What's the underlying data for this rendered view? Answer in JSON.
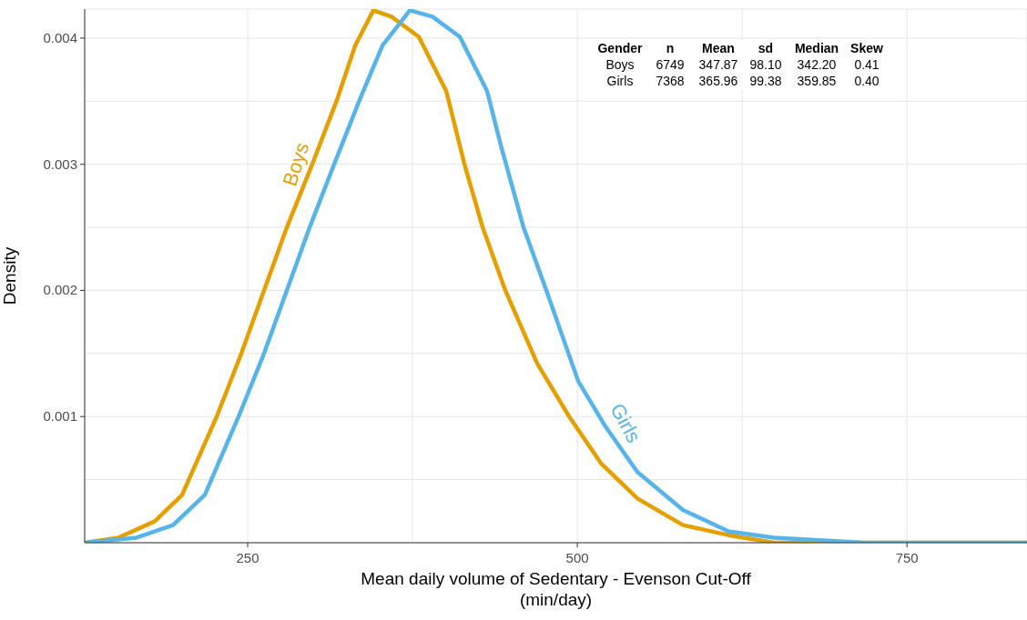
{
  "chart_data": {
    "type": "line",
    "xlabel": "Mean daily volume of Sedentary - Evenson Cut-Off\n(min/day)",
    "ylabel": "Density",
    "xlim": [
      126.4,
      841
    ],
    "ylim": [
      0,
      0.00423
    ],
    "xticks": [
      250,
      {
        "value": 375,
        "label": null
      },
      500,
      {
        "value": 625,
        "label": null
      },
      750
    ],
    "yticks": [
      {
        "value": 0.0005,
        "label": null
      },
      0.001,
      {
        "value": 0.0015,
        "label": null
      },
      0.002,
      {
        "value": 0.0025,
        "label": null
      },
      0.003,
      {
        "value": 0.0035,
        "label": null
      },
      0.004
    ],
    "grid": true,
    "marker": "none",
    "line_style": "solid",
    "annotations": [
      "Gender",
      "n",
      "Mean",
      "sd",
      "Median",
      "Skew",
      "Boys",
      "6749",
      "347.87",
      "98.10",
      "342.20",
      "0.41",
      "Girls",
      "7368",
      "365.96",
      "99.38",
      "359.85",
      "0.40"
    ],
    "series": [
      {
        "name": "Boys",
        "color": "#e69f00",
        "x": [
          126.4,
          151.9,
          179.6,
          200.3,
          226.5,
          245.2,
          262.4,
          279.7,
          299,
          317.7,
          331.5,
          345.3,
          359.1,
          379.8,
          400.6,
          414.4,
          428.2,
          445.4,
          469.6,
          493.8,
          517.9,
          545.6,
          580.1,
          614.7,
          649.2,
          683.7,
          841
        ],
        "values": [
          0,
          4e-05,
          0.00017,
          0.00038,
          0.001,
          0.0015,
          0.002,
          0.0025,
          0.003,
          0.00351,
          0.00394,
          0.00422,
          0.00417,
          0.00401,
          0.00358,
          0.003,
          0.0025,
          0.002,
          0.00142,
          0.001,
          0.00063,
          0.00035,
          0.00014,
          6e-05,
          0,
          0,
          0
        ]
      },
      {
        "name": "Girls",
        "color": "#56b4e9",
        "x": [
          126.4,
          165.7,
          193.4,
          217.5,
          243.1,
          262.4,
          279.7,
          297,
          315.6,
          334.9,
          352.2,
          373,
          390.2,
          410.9,
          431.6,
          442,
          459.2,
          476.5,
          500.7,
          521.4,
          545.6,
          580.1,
          614.7,
          649.2,
          718.2,
          841
        ],
        "values": [
          0,
          4e-05,
          0.00014,
          0.00038,
          0.001,
          0.0015,
          0.002,
          0.0025,
          0.003,
          0.00351,
          0.00394,
          0.00422,
          0.00417,
          0.00401,
          0.00358,
          0.00315,
          0.0025,
          0.002,
          0.00128,
          0.00092,
          0.00056,
          0.00026,
          9e-05,
          4e-05,
          0,
          0
        ]
      }
    ]
  }
}
